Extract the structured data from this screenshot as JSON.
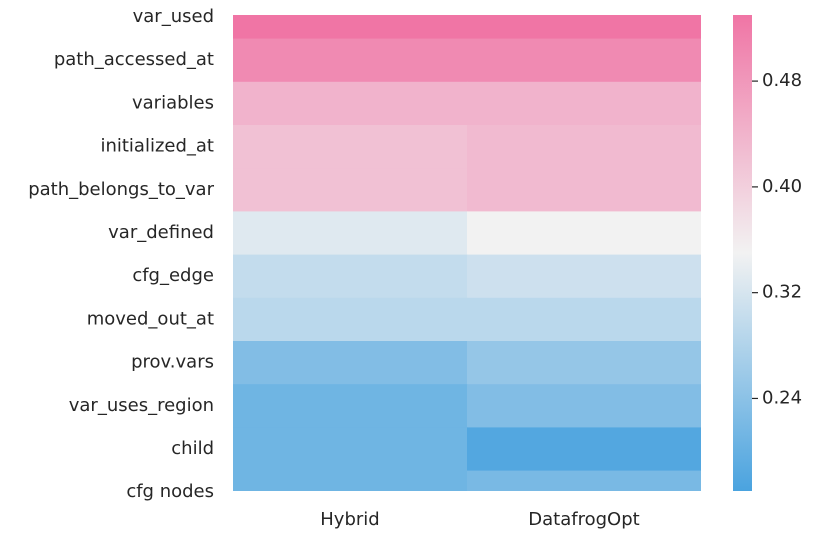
{
  "chart_data": {
    "type": "heatmap",
    "categories": [
      "var_used",
      "path_accessed_at",
      "variables",
      "initialized_at",
      "path_belongs_to_var",
      "var_defined",
      "cfg_edge",
      "moved_out_at",
      "prov.vars",
      "var_uses_region",
      "child",
      "cfg nodes"
    ],
    "columns": [
      "Hybrid",
      "DatafrogOpt"
    ],
    "values": [
      [
        0.53,
        0.53
      ],
      [
        0.5,
        0.5
      ],
      [
        0.44,
        0.44
      ],
      [
        0.42,
        0.43
      ],
      [
        0.42,
        0.43
      ],
      [
        0.33,
        0.35
      ],
      [
        0.3,
        0.31
      ],
      [
        0.29,
        0.29
      ],
      [
        0.23,
        0.25
      ],
      [
        0.21,
        0.23
      ],
      [
        0.21,
        0.18
      ],
      [
        0.21,
        0.22
      ]
    ],
    "colors": [
      "#4aa3df",
      "#f2f2f2",
      "#f075a5"
    ],
    "zlim": [
      0.17,
      0.53
    ],
    "zticks": [
      {
        "value": 0.24,
        "label": "0.24"
      },
      0.32,
      {
        "value": 0.4,
        "label": "0.40"
      },
      0.48
    ]
  }
}
